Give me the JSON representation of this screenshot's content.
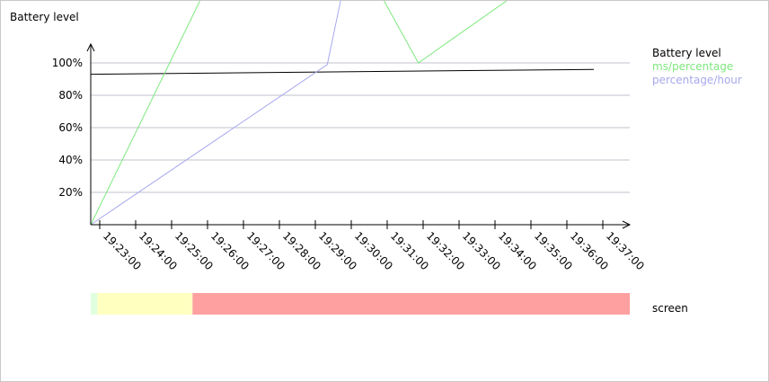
{
  "chart_data": {
    "type": "line",
    "ylabel": "Battery level",
    "ytick_labels": [
      "20%",
      "40%",
      "60%",
      "80%",
      "100%"
    ],
    "yticks": [
      20,
      40,
      60,
      80,
      100
    ],
    "ylim": [
      0,
      110
    ],
    "xtick_labels": [
      "19:23:00",
      "19:24:00",
      "19:25:00",
      "19:26:00",
      "19:27:00",
      "19:28:00",
      "19:29:00",
      "19:30:00",
      "19:31:00",
      "19:32:00",
      "19:33:00",
      "19:34:00",
      "19:35:00",
      "19:36:00",
      "19:37:00"
    ],
    "xlim": [
      "19:22:45",
      "19:37:45"
    ],
    "grid": "horizontal",
    "legend_position": "right",
    "series": [
      {
        "name": "Battery level",
        "color": "#000000",
        "points": [
          [
            "19:22:45",
            93
          ],
          [
            "19:36:45",
            96
          ]
        ]
      },
      {
        "name": "ms/percentage",
        "color": "#7ee87e",
        "points": [
          [
            "19:22:45",
            0
          ],
          [
            "19:26:00",
            148
          ],
          [
            "19:30:15",
            165
          ],
          [
            "19:31:52",
            100
          ],
          [
            "19:35:00",
            149
          ]
        ]
      },
      {
        "name": "percentage/hour",
        "color": "#a8a8ee",
        "points": [
          [
            "19:22:45",
            0
          ],
          [
            "19:29:20",
            99
          ],
          [
            "19:30:00",
            170
          ]
        ]
      }
    ],
    "status_bar": {
      "label": "screen",
      "segments": [
        {
          "start": "19:22:45",
          "end": "19:22:56",
          "color": "#dfffdf"
        },
        {
          "start": "19:22:56",
          "end": "19:25:35",
          "color": "#ffffc0"
        },
        {
          "start": "19:25:35",
          "end": "19:37:45",
          "color": "#ffa0a0"
        }
      ]
    }
  }
}
